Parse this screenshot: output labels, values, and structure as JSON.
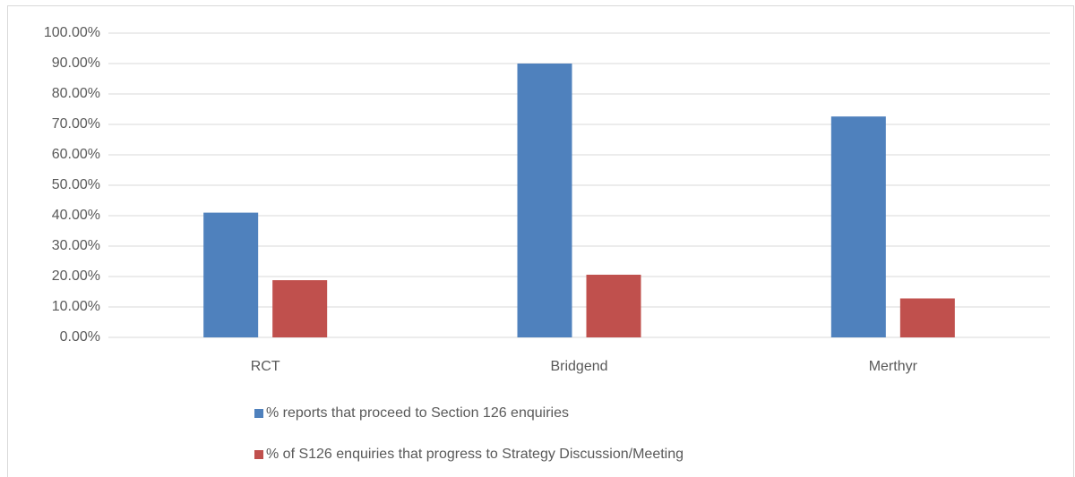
{
  "chart_data": {
    "type": "bar",
    "categories": [
      "RCT",
      "Bridgend",
      "Merthyr"
    ],
    "series": [
      {
        "name": "% reports that proceed to Section 126 enquiries",
        "color": "#4f81bd",
        "values": [
          41,
          90,
          72.6
        ]
      },
      {
        "name": "% of S126 enquiries that progress to Strategy Discussion/Meeting",
        "color": "#c0504d",
        "values": [
          18.8,
          20.6,
          12.8
        ]
      }
    ],
    "ylim": [
      0,
      100
    ],
    "yticks": [
      {
        "value": 0,
        "label": "0.00%"
      },
      {
        "value": 10,
        "label": "10.00%"
      },
      {
        "value": 20,
        "label": "20.00%"
      },
      {
        "value": 30,
        "label": "30.00%"
      },
      {
        "value": 40,
        "label": "40.00%"
      },
      {
        "value": 50,
        "label": "50.00%"
      },
      {
        "value": 60,
        "label": "60.00%"
      },
      {
        "value": 70,
        "label": "70.00%"
      },
      {
        "value": 80,
        "label": "80.00%"
      },
      {
        "value": 90,
        "label": "90.00%"
      },
      {
        "value": 100,
        "label": "100.00%"
      }
    ],
    "grid": true,
    "legend": "bottom"
  }
}
